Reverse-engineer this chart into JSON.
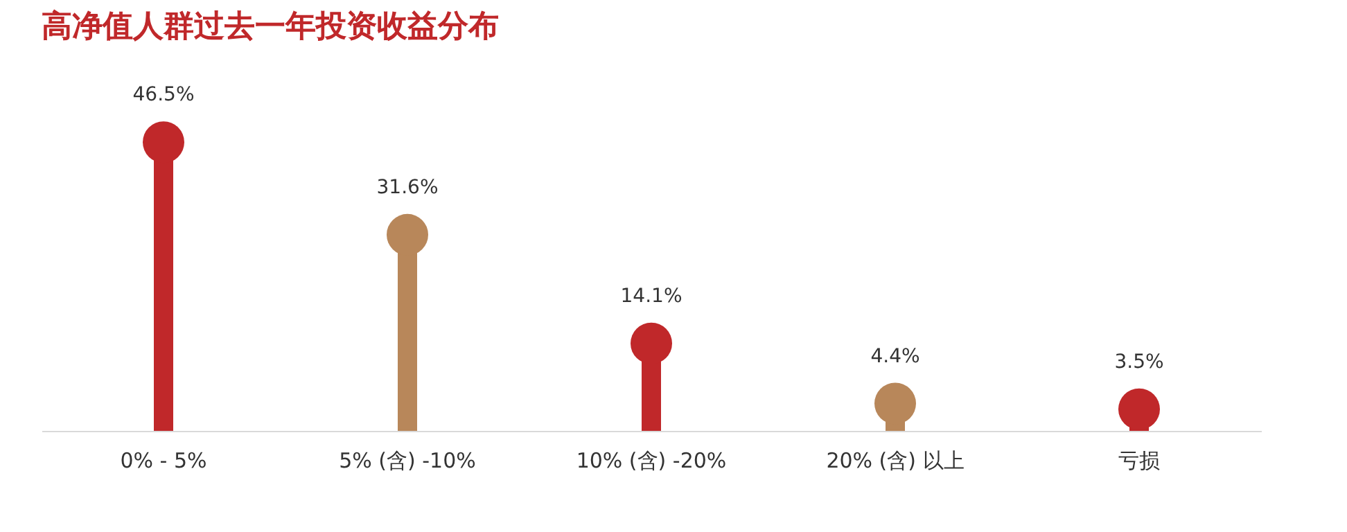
{
  "chart_data": {
    "type": "lollipop",
    "title": "高净值人群过去一年投资收益分布",
    "categories": [
      "0% - 5%",
      "5% (含) -10%",
      "10% (含) -20%",
      "20% (含) 以上",
      "亏损"
    ],
    "values": [
      46.5,
      31.6,
      14.1,
      4.4,
      3.5
    ],
    "value_labels": [
      "46.5%",
      "31.6%",
      "14.1%",
      "4.4%",
      "3.5%"
    ],
    "colors": [
      "#c0282a",
      "#b8875a",
      "#c0282a",
      "#b8875a",
      "#c0282a"
    ],
    "grid": false
  }
}
